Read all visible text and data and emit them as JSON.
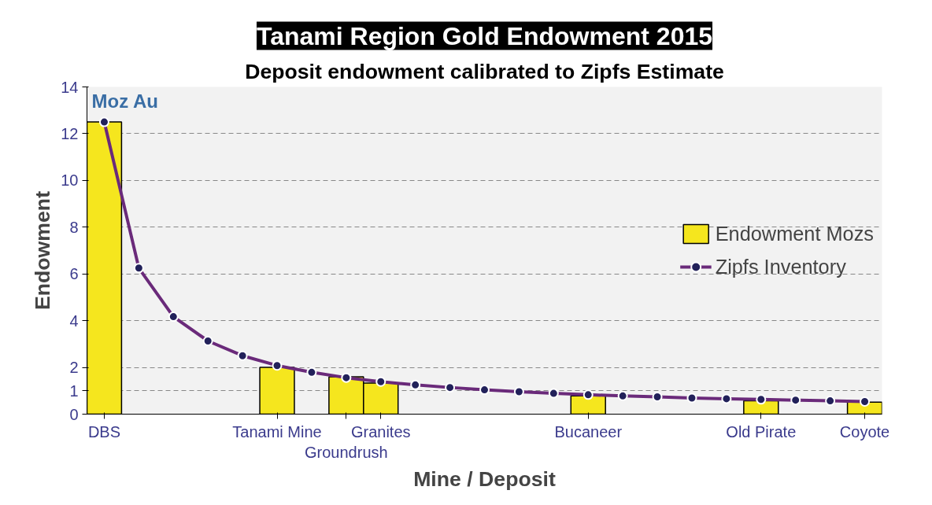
{
  "chart_data": {
    "type": "bar",
    "title": "Tanami Region Gold Endowment 2015",
    "subtitle": "Deposit endowment calibrated to Zipfs Estimate",
    "xlabel": "Mine / Deposit",
    "ylabel": "Endowment",
    "annotations": [
      "Moz Au"
    ],
    "categories": [
      "DBS",
      null,
      null,
      null,
      null,
      "Tanami Mine",
      null,
      "Groundrush",
      "Granites",
      null,
      null,
      null,
      null,
      null,
      "Bucaneer",
      null,
      null,
      null,
      null,
      "Old Pirate",
      null,
      null,
      "Coyote"
    ],
    "series": [
      {
        "name": "Endowment Mozs",
        "type": "bar",
        "color": "#f5e61e",
        "values": [
          12.5,
          null,
          null,
          null,
          null,
          2.0,
          null,
          1.6,
          1.33,
          null,
          null,
          null,
          null,
          null,
          0.78,
          null,
          null,
          null,
          null,
          0.57,
          null,
          null,
          0.51
        ]
      },
      {
        "name": "Zipfs Inventory",
        "type": "line",
        "color": "#6a2a7a",
        "values": [
          12.5,
          6.25,
          4.17,
          3.13,
          2.5,
          2.08,
          1.79,
          1.56,
          1.39,
          1.25,
          1.14,
          1.04,
          0.96,
          0.89,
          0.83,
          0.78,
          0.74,
          0.69,
          0.66,
          0.63,
          0.6,
          0.57,
          0.54
        ]
      }
    ],
    "ylim": [
      0,
      14
    ],
    "yticks": [
      0,
      1,
      2,
      4,
      6,
      8,
      10,
      12,
      14
    ],
    "grid": "y",
    "legend": "right",
    "marker": "circle",
    "line_style": "solid"
  }
}
